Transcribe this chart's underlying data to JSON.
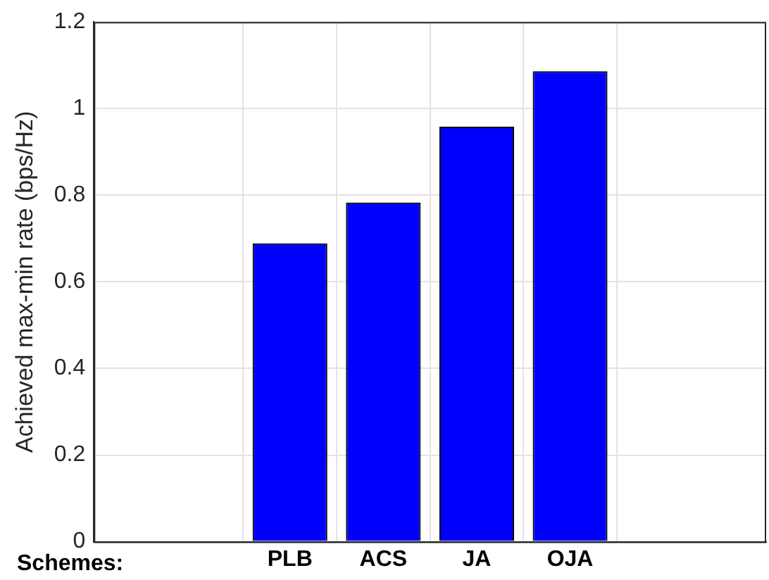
{
  "chart_data": {
    "type": "bar",
    "xlabel": "Schemes:",
    "ylabel": "Achieved max-min rate (bps/Hz)",
    "categories": [
      "PLB",
      "ACS",
      "JA",
      "OJA"
    ],
    "values": [
      0.689,
      0.783,
      0.958,
      1.086
    ],
    "color": "#0000ff",
    "ylim": [
      0,
      1.2
    ],
    "yticks": [
      0,
      0.2,
      0.4,
      0.6,
      0.8,
      1,
      1.2
    ],
    "grid": true
  }
}
